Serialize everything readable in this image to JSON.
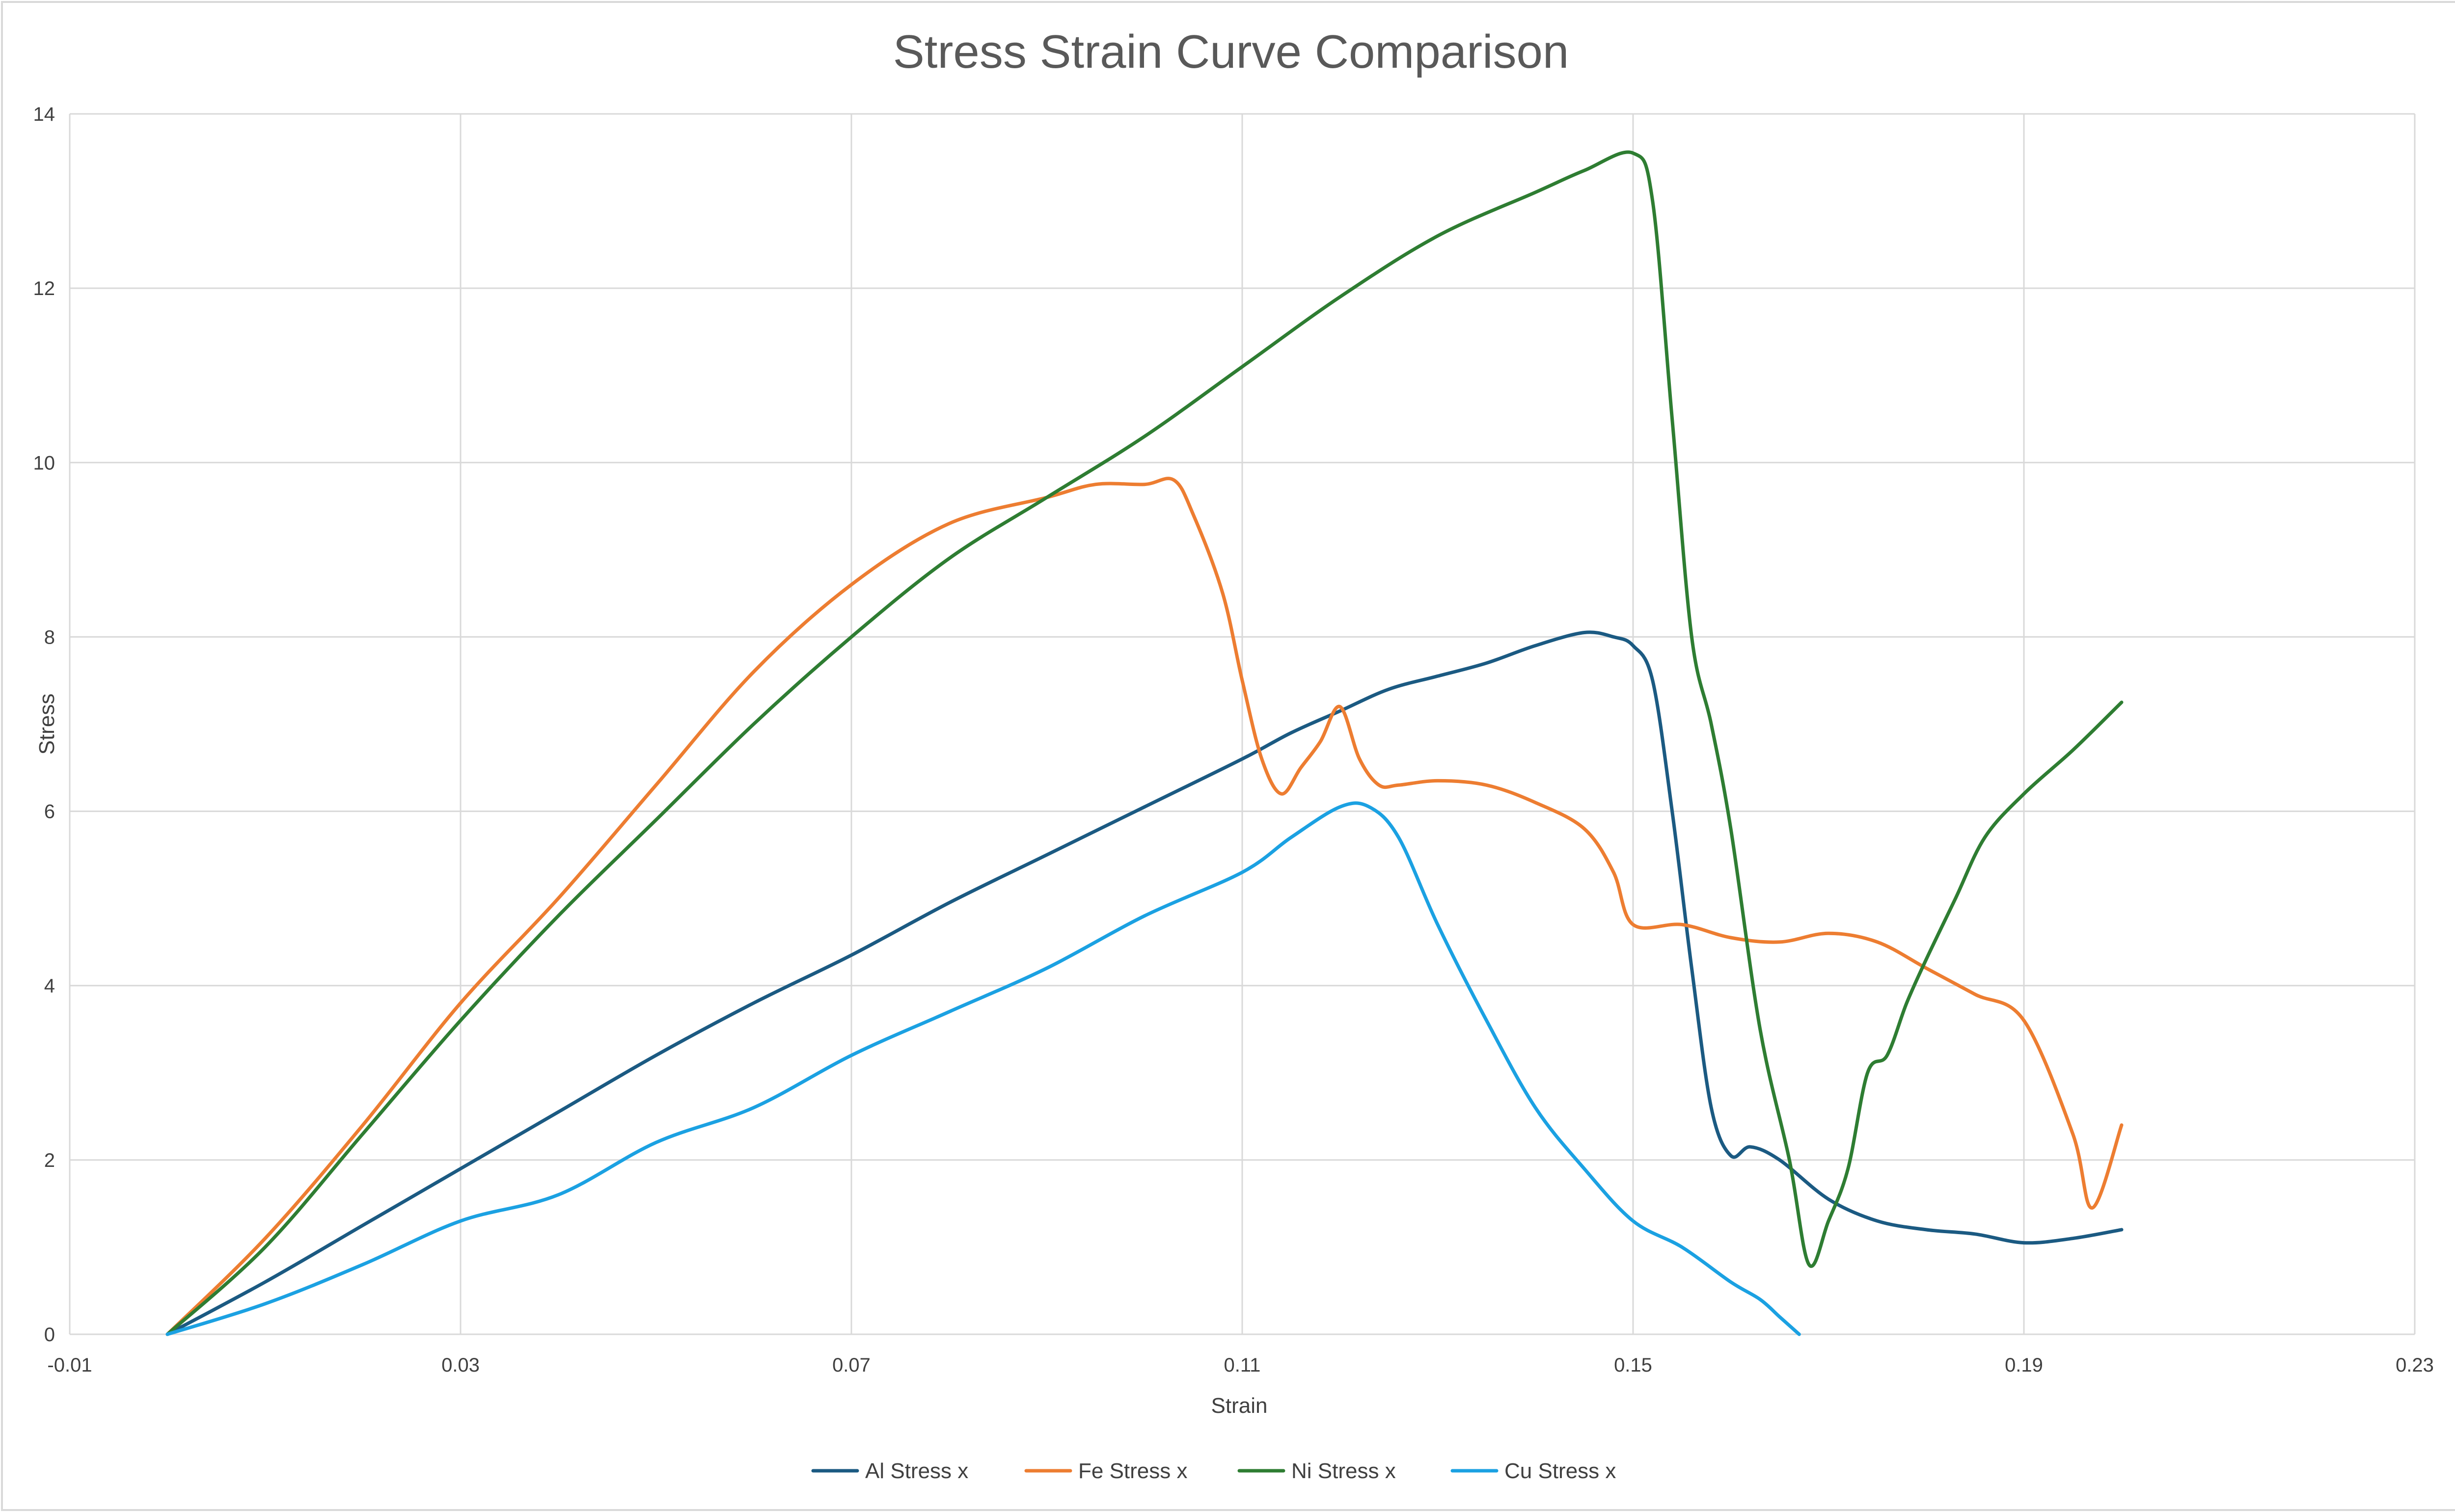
{
  "chart_data": {
    "type": "line",
    "title": "Stress Strain Curve Comparison",
    "xlabel": "Strain",
    "ylabel": "Stress",
    "xlim": [
      -0.01,
      0.23
    ],
    "ylim": [
      0,
      14
    ],
    "x_ticks": [
      -0.01,
      0.03,
      0.07,
      0.11,
      0.15,
      0.19,
      0.23
    ],
    "x_tick_labels": [
      "-0.01",
      "0.03",
      "0.07",
      "0.11",
      "0.15",
      "0.19",
      "0.23"
    ],
    "y_ticks": [
      0,
      2,
      4,
      6,
      8,
      10,
      12,
      14
    ],
    "y_tick_labels": [
      "0",
      "2",
      "4",
      "6",
      "8",
      "10",
      "12",
      "14"
    ],
    "grid": true,
    "legend_position": "bottom",
    "series": [
      {
        "name": "Al Stress x",
        "color": "#1b5a82",
        "x": [
          0.0,
          0.01,
          0.02,
          0.03,
          0.04,
          0.05,
          0.06,
          0.07,
          0.08,
          0.09,
          0.1,
          0.11,
          0.115,
          0.12,
          0.125,
          0.13,
          0.135,
          0.14,
          0.145,
          0.148,
          0.15,
          0.152,
          0.154,
          0.156,
          0.158,
          0.16,
          0.162,
          0.165,
          0.17,
          0.175,
          0.18,
          0.185,
          0.19,
          0.195,
          0.2
        ],
        "y": [
          0.0,
          0.6,
          1.25,
          1.9,
          2.55,
          3.2,
          3.8,
          4.35,
          4.95,
          5.5,
          6.05,
          6.6,
          6.9,
          7.15,
          7.4,
          7.55,
          7.7,
          7.9,
          8.05,
          8.0,
          7.9,
          7.5,
          6.0,
          4.2,
          2.6,
          2.05,
          2.15,
          2.0,
          1.55,
          1.3,
          1.2,
          1.15,
          1.05,
          1.1,
          1.2
        ]
      },
      {
        "name": "Fe Stress x",
        "color": "#ed7d31",
        "x": [
          0.0,
          0.01,
          0.02,
          0.03,
          0.04,
          0.05,
          0.06,
          0.07,
          0.08,
          0.09,
          0.095,
          0.1,
          0.103,
          0.105,
          0.108,
          0.11,
          0.112,
          0.114,
          0.116,
          0.118,
          0.12,
          0.122,
          0.124,
          0.126,
          0.13,
          0.135,
          0.14,
          0.145,
          0.148,
          0.15,
          0.155,
          0.16,
          0.165,
          0.17,
          0.175,
          0.18,
          0.185,
          0.19,
          0.195,
          0.197,
          0.2
        ],
        "y": [
          0.0,
          1.1,
          2.4,
          3.8,
          5.0,
          6.3,
          7.6,
          8.6,
          9.3,
          9.6,
          9.75,
          9.75,
          9.8,
          9.4,
          8.5,
          7.5,
          6.6,
          6.2,
          6.5,
          6.8,
          7.2,
          6.6,
          6.3,
          6.3,
          6.35,
          6.3,
          6.1,
          5.8,
          5.3,
          4.7,
          4.7,
          4.55,
          4.5,
          4.6,
          4.5,
          4.2,
          3.9,
          3.6,
          2.3,
          1.45,
          2.4
        ]
      },
      {
        "name": "Ni Stress x",
        "color": "#2e7d32",
        "x": [
          0.0,
          0.01,
          0.02,
          0.03,
          0.04,
          0.05,
          0.06,
          0.07,
          0.08,
          0.09,
          0.1,
          0.11,
          0.12,
          0.13,
          0.14,
          0.145,
          0.15,
          0.152,
          0.154,
          0.156,
          0.158,
          0.16,
          0.163,
          0.166,
          0.168,
          0.17,
          0.172,
          0.174,
          0.176,
          0.178,
          0.18,
          0.183,
          0.186,
          0.19,
          0.195,
          0.2
        ],
        "y": [
          0.0,
          1.0,
          2.3,
          3.6,
          4.8,
          5.9,
          7.0,
          8.0,
          8.9,
          9.6,
          10.3,
          11.1,
          11.9,
          12.6,
          13.1,
          13.35,
          13.55,
          13.0,
          10.5,
          8.0,
          7.0,
          5.8,
          3.5,
          2.0,
          0.8,
          1.3,
          1.9,
          3.0,
          3.2,
          3.8,
          4.3,
          5.0,
          5.7,
          6.2,
          6.7,
          7.25
        ]
      },
      {
        "name": "Cu Stress x",
        "color": "#1ba1e2",
        "x": [
          0.0,
          0.01,
          0.02,
          0.03,
          0.04,
          0.05,
          0.06,
          0.07,
          0.08,
          0.09,
          0.1,
          0.11,
          0.115,
          0.12,
          0.123,
          0.126,
          0.13,
          0.135,
          0.14,
          0.145,
          0.15,
          0.155,
          0.16,
          0.163,
          0.165,
          0.167
        ],
        "y": [
          0.0,
          0.35,
          0.8,
          1.3,
          1.6,
          2.2,
          2.6,
          3.2,
          3.7,
          4.2,
          4.8,
          5.3,
          5.7,
          6.05,
          6.05,
          5.7,
          4.7,
          3.6,
          2.6,
          1.9,
          1.3,
          1.0,
          0.6,
          0.4,
          0.2,
          0.0
        ]
      }
    ]
  }
}
